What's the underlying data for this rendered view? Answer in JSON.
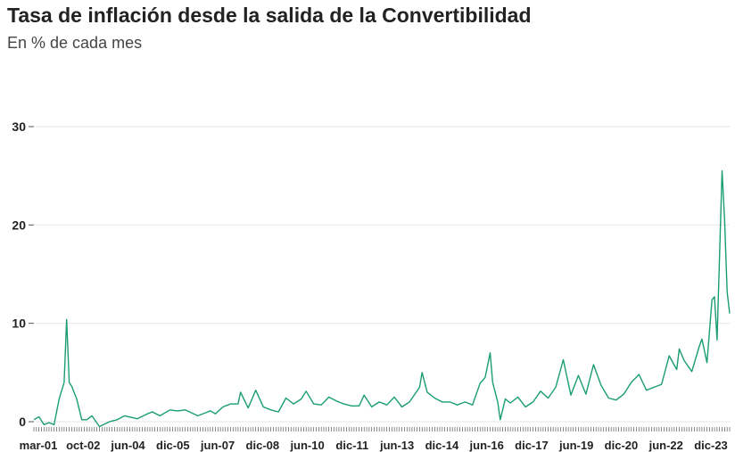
{
  "header": {
    "title": "Tasa de inflación desde la salida de la Convertibilidad",
    "subtitle": "En % de cada mes"
  },
  "chart_data": {
    "type": "line",
    "title": "Tasa de inflación desde la salida de la Convertibilidad",
    "subtitle": "En % de cada mes",
    "xlabel": "",
    "ylabel": "",
    "ylim": [
      0,
      30
    ],
    "yticks": [
      0,
      10,
      20,
      30
    ],
    "grid": "horizontal",
    "color": "#1a9e6e",
    "x_tick_labels": [
      "mar-01",
      "oct-02",
      "jun-04",
      "dic-05",
      "jun-07",
      "dic-08",
      "jun-10",
      "dic-11",
      "jun-13",
      "dic-14",
      "jun-16",
      "dic-17",
      "jun-19",
      "dic-20",
      "jun-22",
      "dic-23"
    ],
    "x_start": "2001-03",
    "x_end": "2024-03",
    "series": [
      {
        "points": [
          [
            "2001-03",
            0.2
          ],
          [
            "2001-05",
            0.5
          ],
          [
            "2001-07",
            -0.3
          ],
          [
            "2001-09",
            -0.1
          ],
          [
            "2001-11",
            -0.3
          ],
          [
            "2002-01",
            2.3
          ],
          [
            "2002-03",
            4.0
          ],
          [
            "2002-04",
            10.4
          ],
          [
            "2002-05",
            4.0
          ],
          [
            "2002-06",
            3.6
          ],
          [
            "2002-08",
            2.3
          ],
          [
            "2002-10",
            0.2
          ],
          [
            "2002-12",
            0.2
          ],
          [
            "2003-02",
            0.6
          ],
          [
            "2003-05",
            -0.5
          ],
          [
            "2003-09",
            0.0
          ],
          [
            "2003-12",
            0.2
          ],
          [
            "2004-03",
            0.6
          ],
          [
            "2004-08",
            0.3
          ],
          [
            "2004-12",
            0.8
          ],
          [
            "2005-02",
            1.0
          ],
          [
            "2005-05",
            0.6
          ],
          [
            "2005-09",
            1.2
          ],
          [
            "2005-12",
            1.1
          ],
          [
            "2006-03",
            1.2
          ],
          [
            "2006-08",
            0.6
          ],
          [
            "2006-12",
            1.0
          ],
          [
            "2007-01",
            1.1
          ],
          [
            "2007-03",
            0.8
          ],
          [
            "2007-06",
            1.5
          ],
          [
            "2007-09",
            1.8
          ],
          [
            "2007-12",
            1.8
          ],
          [
            "2008-01",
            3.0
          ],
          [
            "2008-04",
            1.4
          ],
          [
            "2008-07",
            3.2
          ],
          [
            "2008-10",
            1.5
          ],
          [
            "2009-01",
            1.2
          ],
          [
            "2009-04",
            1.0
          ],
          [
            "2009-07",
            2.4
          ],
          [
            "2009-10",
            1.8
          ],
          [
            "2010-01",
            2.3
          ],
          [
            "2010-03",
            3.1
          ],
          [
            "2010-06",
            1.8
          ],
          [
            "2010-09",
            1.7
          ],
          [
            "2010-12",
            2.5
          ],
          [
            "2011-03",
            2.1
          ],
          [
            "2011-06",
            1.8
          ],
          [
            "2011-09",
            1.6
          ],
          [
            "2011-12",
            1.6
          ],
          [
            "2012-02",
            2.7
          ],
          [
            "2012-05",
            1.5
          ],
          [
            "2012-08",
            2.0
          ],
          [
            "2012-11",
            1.7
          ],
          [
            "2013-02",
            2.5
          ],
          [
            "2013-05",
            1.5
          ],
          [
            "2013-08",
            2.0
          ],
          [
            "2013-12",
            3.5
          ],
          [
            "2014-01",
            5.0
          ],
          [
            "2014-03",
            3.0
          ],
          [
            "2014-06",
            2.4
          ],
          [
            "2014-09",
            2.0
          ],
          [
            "2014-12",
            2.0
          ],
          [
            "2015-03",
            1.7
          ],
          [
            "2015-06",
            2.0
          ],
          [
            "2015-09",
            1.7
          ],
          [
            "2015-12",
            3.9
          ],
          [
            "2016-02",
            4.5
          ],
          [
            "2016-04",
            7.0
          ],
          [
            "2016-05",
            4.0
          ],
          [
            "2016-07",
            2.0
          ],
          [
            "2016-08",
            0.2
          ],
          [
            "2016-10",
            2.3
          ],
          [
            "2016-12",
            1.9
          ],
          [
            "2017-03",
            2.5
          ],
          [
            "2017-06",
            1.5
          ],
          [
            "2017-09",
            2.0
          ],
          [
            "2017-12",
            3.1
          ],
          [
            "2018-03",
            2.4
          ],
          [
            "2018-06",
            3.5
          ],
          [
            "2018-09",
            6.3
          ],
          [
            "2018-12",
            2.7
          ],
          [
            "2019-03",
            4.7
          ],
          [
            "2019-06",
            2.8
          ],
          [
            "2019-09",
            5.8
          ],
          [
            "2019-12",
            3.7
          ],
          [
            "2020-03",
            2.4
          ],
          [
            "2020-06",
            2.2
          ],
          [
            "2020-09",
            2.8
          ],
          [
            "2020-12",
            4.0
          ],
          [
            "2021-03",
            4.8
          ],
          [
            "2021-06",
            3.2
          ],
          [
            "2021-09",
            3.5
          ],
          [
            "2021-12",
            3.8
          ],
          [
            "2022-03",
            6.7
          ],
          [
            "2022-06",
            5.3
          ],
          [
            "2022-07",
            7.4
          ],
          [
            "2022-09",
            6.2
          ],
          [
            "2022-12",
            5.1
          ],
          [
            "2023-03",
            7.7
          ],
          [
            "2023-04",
            8.4
          ],
          [
            "2023-06",
            6.0
          ],
          [
            "2023-08",
            12.4
          ],
          [
            "2023-09",
            12.7
          ],
          [
            "2023-10",
            8.3
          ],
          [
            "2023-12",
            25.5
          ],
          [
            "2024-01",
            20.6
          ],
          [
            "2024-02",
            13.2
          ],
          [
            "2024-03",
            11.0
          ]
        ]
      }
    ]
  }
}
